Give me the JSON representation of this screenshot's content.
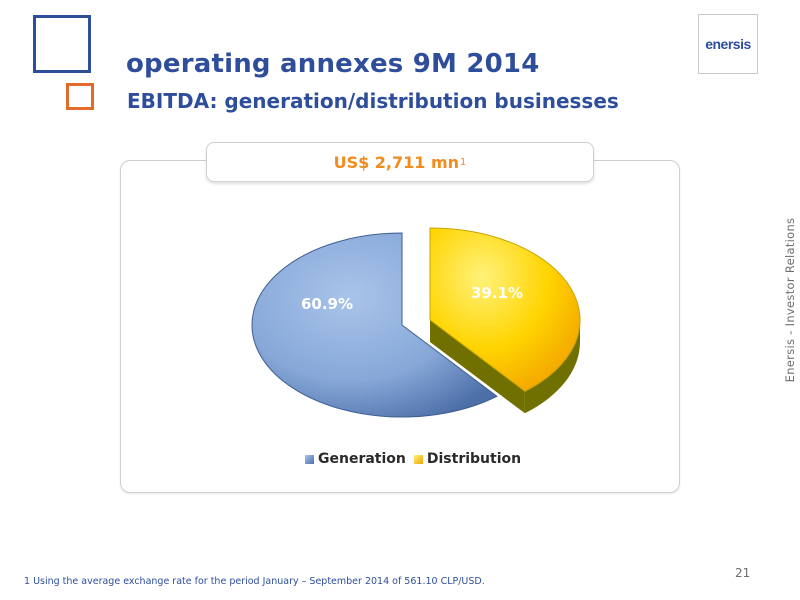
{
  "slide": {
    "title": "operating annexes 9M 2014",
    "subtitle": "EBITDA: generation/distribution businesses",
    "logo_text": "enersis",
    "side_text": "Enersis - Investor Relations",
    "page_number": "21",
    "footnote": "1 Using the average exchange rate for the period January – September 2014 of  561.10 CLP/USD."
  },
  "colors": {
    "brand_blue": "#2e4e9b",
    "accent_orange": "#e26b2b",
    "total_orange": "#f28c1e",
    "generation": "#7f9fcf",
    "distribution": "#ffd200"
  },
  "chart_data": {
    "type": "pie",
    "title": "US$ 2,711 mn",
    "title_footnote_marker": "1",
    "exploded": true,
    "legend_position": "bottom",
    "slices": [
      {
        "name": "Generation",
        "value": 60.9,
        "label": "60.9%"
      },
      {
        "name": "Distribution",
        "value": 39.1,
        "label": "39.1%"
      }
    ]
  }
}
